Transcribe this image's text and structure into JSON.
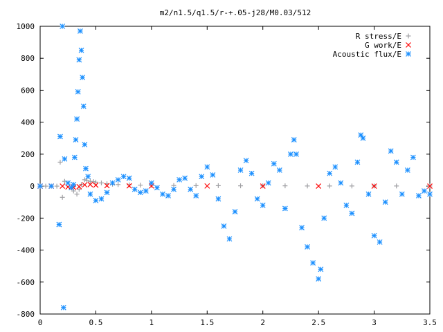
{
  "chart_data": {
    "type": "scatter",
    "title": "m2/n1.5/q1.5/r-+.05-j28/M0.03/512",
    "xlabel": "",
    "ylabel": "",
    "xlim": [
      0,
      3.5
    ],
    "ylim": [
      -800,
      1000
    ],
    "grid": false,
    "legend_position": "top-right",
    "x_ticks": [
      {
        "value": 0,
        "label": "0"
      },
      {
        "value": 0.5,
        "label": "0.5"
      },
      {
        "value": 1,
        "label": "1"
      },
      {
        "value": 1.5,
        "label": "1.5"
      },
      {
        "value": 2,
        "label": "2"
      },
      {
        "value": 2.5,
        "label": "2.5"
      },
      {
        "value": 3,
        "label": "3"
      },
      {
        "value": 3.5,
        "label": "3.5"
      }
    ],
    "y_ticks": [
      {
        "value": 1000,
        "label": "1000"
      },
      {
        "value": 800,
        "label": "800"
      },
      {
        "value": 600,
        "label": "600"
      },
      {
        "value": 400,
        "label": "400"
      },
      {
        "value": 200,
        "label": "200"
      },
      {
        "value": 0,
        "label": "0"
      },
      {
        "value": -200,
        "label": "-200"
      },
      {
        "value": -400,
        "label": "-400"
      },
      {
        "value": -600,
        "label": "-600"
      },
      {
        "value": -800,
        "label": "-800"
      }
    ],
    "series": [
      {
        "name": "R stress/E",
        "marker": "plus",
        "color": "#a0a0a4",
        "x": [
          0.0,
          0.05,
          0.1,
          0.15,
          0.18,
          0.2,
          0.22,
          0.25,
          0.28,
          0.3,
          0.33,
          0.35,
          0.37,
          0.4,
          0.42,
          0.45,
          0.48,
          0.5,
          0.55,
          0.6,
          0.65,
          0.7,
          0.8,
          0.9,
          1.0,
          1.2,
          1.4,
          1.6,
          1.8,
          2.0,
          2.2,
          2.4,
          2.6,
          2.8,
          3.0,
          3.2,
          3.5
        ],
        "y": [
          0,
          0,
          0,
          0,
          150,
          -70,
          30,
          20,
          -10,
          -30,
          -50,
          -20,
          10,
          40,
          35,
          30,
          28,
          25,
          20,
          15,
          12,
          10,
          8,
          6,
          5,
          4,
          3,
          3,
          2,
          2,
          2,
          1,
          1,
          1,
          1,
          1,
          1
        ]
      },
      {
        "name": "G work/E",
        "marker": "cross",
        "color": "#ff0000",
        "x": [
          0.0,
          0.1,
          0.2,
          0.25,
          0.3,
          0.35,
          0.4,
          0.45,
          0.5,
          0.6,
          0.8,
          1.0,
          1.5,
          2.0,
          2.5,
          3.0,
          3.5
        ],
        "y": [
          0,
          0,
          0,
          -5,
          -8,
          -3,
          8,
          10,
          6,
          3,
          2,
          1,
          1,
          0,
          0,
          0,
          0
        ]
      },
      {
        "name": "Acoustic flux/E",
        "marker": "star",
        "color": "#1c90ff",
        "x": [
          0.0,
          0.1,
          0.17,
          0.18,
          0.2,
          0.21,
          0.22,
          0.25,
          0.28,
          0.3,
          0.31,
          0.32,
          0.33,
          0.34,
          0.35,
          0.36,
          0.37,
          0.38,
          0.39,
          0.4,
          0.41,
          0.43,
          0.45,
          0.5,
          0.55,
          0.6,
          0.65,
          0.7,
          0.75,
          0.8,
          0.85,
          0.9,
          0.95,
          1.0,
          1.05,
          1.1,
          1.15,
          1.2,
          1.25,
          1.3,
          1.35,
          1.4,
          1.45,
          1.5,
          1.55,
          1.6,
          1.65,
          1.7,
          1.75,
          1.8,
          1.85,
          1.9,
          1.95,
          2.0,
          2.05,
          2.1,
          2.15,
          2.2,
          2.25,
          2.28,
          2.3,
          2.35,
          2.4,
          2.45,
          2.5,
          2.52,
          2.55,
          2.6,
          2.65,
          2.7,
          2.75,
          2.8,
          2.85,
          2.88,
          2.9,
          2.95,
          3.0,
          3.05,
          3.1,
          3.15,
          3.2,
          3.25,
          3.3,
          3.35,
          3.4,
          3.45,
          3.5
        ],
        "y": [
          0,
          0,
          -240,
          310,
          1000,
          -760,
          170,
          20,
          -10,
          10,
          180,
          290,
          420,
          590,
          790,
          970,
          850,
          680,
          500,
          260,
          110,
          60,
          -50,
          -90,
          -80,
          -40,
          20,
          40,
          60,
          50,
          -20,
          -40,
          -30,
          20,
          -10,
          -50,
          -60,
          -20,
          40,
          50,
          -20,
          -60,
          60,
          120,
          70,
          -80,
          -250,
          -330,
          -160,
          100,
          160,
          80,
          -80,
          -120,
          20,
          140,
          100,
          -140,
          200,
          290,
          200,
          -260,
          -380,
          -480,
          -580,
          -520,
          -200,
          80,
          120,
          20,
          -120,
          -170,
          150,
          320,
          300,
          -50,
          -310,
          -350,
          -100,
          220,
          150,
          -50,
          100,
          180,
          -60,
          -30,
          -50
        ]
      }
    ]
  }
}
